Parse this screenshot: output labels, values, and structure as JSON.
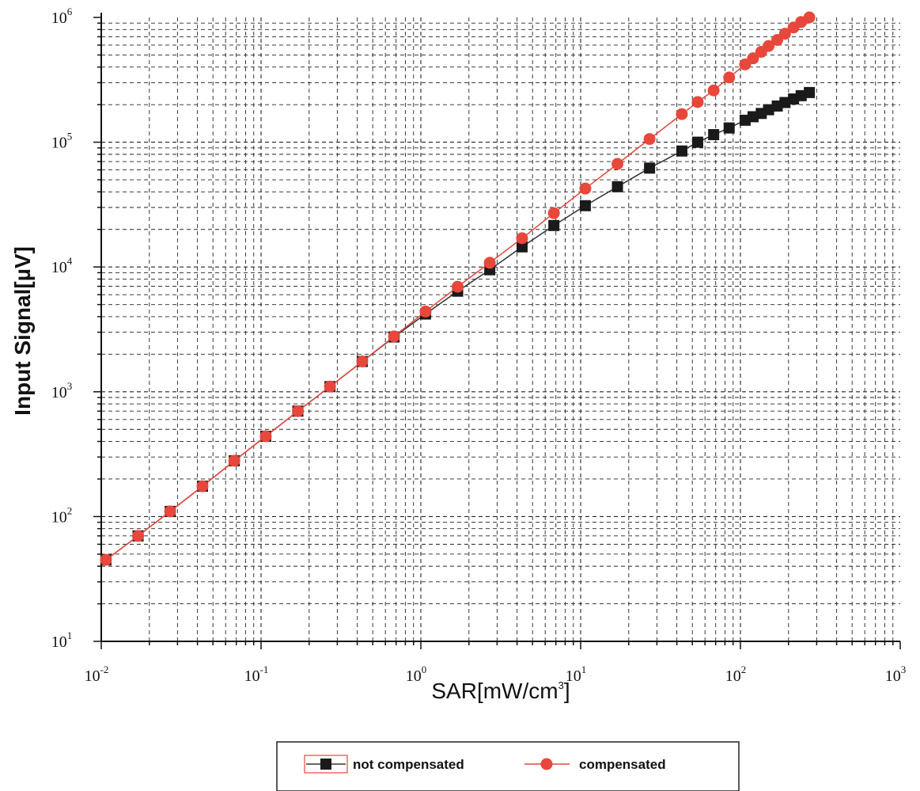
{
  "chart_data": {
    "type": "scatter",
    "title": "",
    "xlabel": "SAR[mW/cm3]",
    "xlabel_main": "SAR[mW/cm",
    "xlabel_sup": "3",
    "xlabel_end": "]",
    "ylabel": "Input Signal[µV]",
    "xscale": "log",
    "yscale": "log",
    "xlim": [
      0.01,
      1000
    ],
    "ylim": [
      10,
      1000000
    ],
    "grid": true,
    "legend_position": "bottom",
    "x_ticks": [
      {
        "base": "10",
        "exp": "-2"
      },
      {
        "base": "10",
        "exp": "-1"
      },
      {
        "base": "10",
        "exp": "0"
      },
      {
        "base": "10",
        "exp": "1"
      },
      {
        "base": "10",
        "exp": "2"
      },
      {
        "base": "10",
        "exp": "3"
      }
    ],
    "y_ticks": [
      {
        "base": "10",
        "exp": "1"
      },
      {
        "base": "10",
        "exp": "2"
      },
      {
        "base": "10",
        "exp": "3"
      },
      {
        "base": "10",
        "exp": "4"
      },
      {
        "base": "10",
        "exp": "5"
      },
      {
        "base": "10",
        "exp": "6"
      }
    ],
    "series": [
      {
        "name": "not compensated",
        "color": "#1a1a1a",
        "line_color": "#333333",
        "marker": "square",
        "x": [
          0.0107,
          0.017,
          0.027,
          0.043,
          0.068,
          0.107,
          0.17,
          0.27,
          0.43,
          0.68,
          1.07,
          1.7,
          2.7,
          4.3,
          6.8,
          10.7,
          17,
          27,
          43,
          54,
          68,
          85,
          107,
          120,
          135,
          150,
          170,
          190,
          215,
          240,
          270
        ],
        "y": [
          45,
          70,
          110,
          175,
          280,
          440,
          700,
          1100,
          1750,
          2750,
          4200,
          6400,
          9500,
          14500,
          21500,
          31000,
          44000,
          62000,
          85000,
          100000,
          115000,
          130000,
          150000,
          160000,
          170000,
          182000,
          195000,
          208000,
          222000,
          236000,
          250000
        ]
      },
      {
        "name": "compensated",
        "color": "#e8473c",
        "line_color": "#e8473c",
        "marker": "circle",
        "x": [
          0.0107,
          0.017,
          0.027,
          0.043,
          0.068,
          0.107,
          0.17,
          0.27,
          0.43,
          0.68,
          1.07,
          1.7,
          2.7,
          4.3,
          6.8,
          10.7,
          17,
          27,
          43,
          54,
          68,
          85,
          107,
          120,
          135,
          150,
          170,
          190,
          215,
          240,
          270
        ],
        "y": [
          45,
          70,
          110,
          175,
          280,
          440,
          700,
          1100,
          1750,
          2780,
          4400,
          6950,
          10800,
          17000,
          27000,
          42500,
          67000,
          106000,
          168000,
          210000,
          260000,
          330000,
          420000,
          470000,
          530000,
          590000,
          660000,
          740000,
          830000,
          920000,
          1000000
        ]
      }
    ]
  }
}
